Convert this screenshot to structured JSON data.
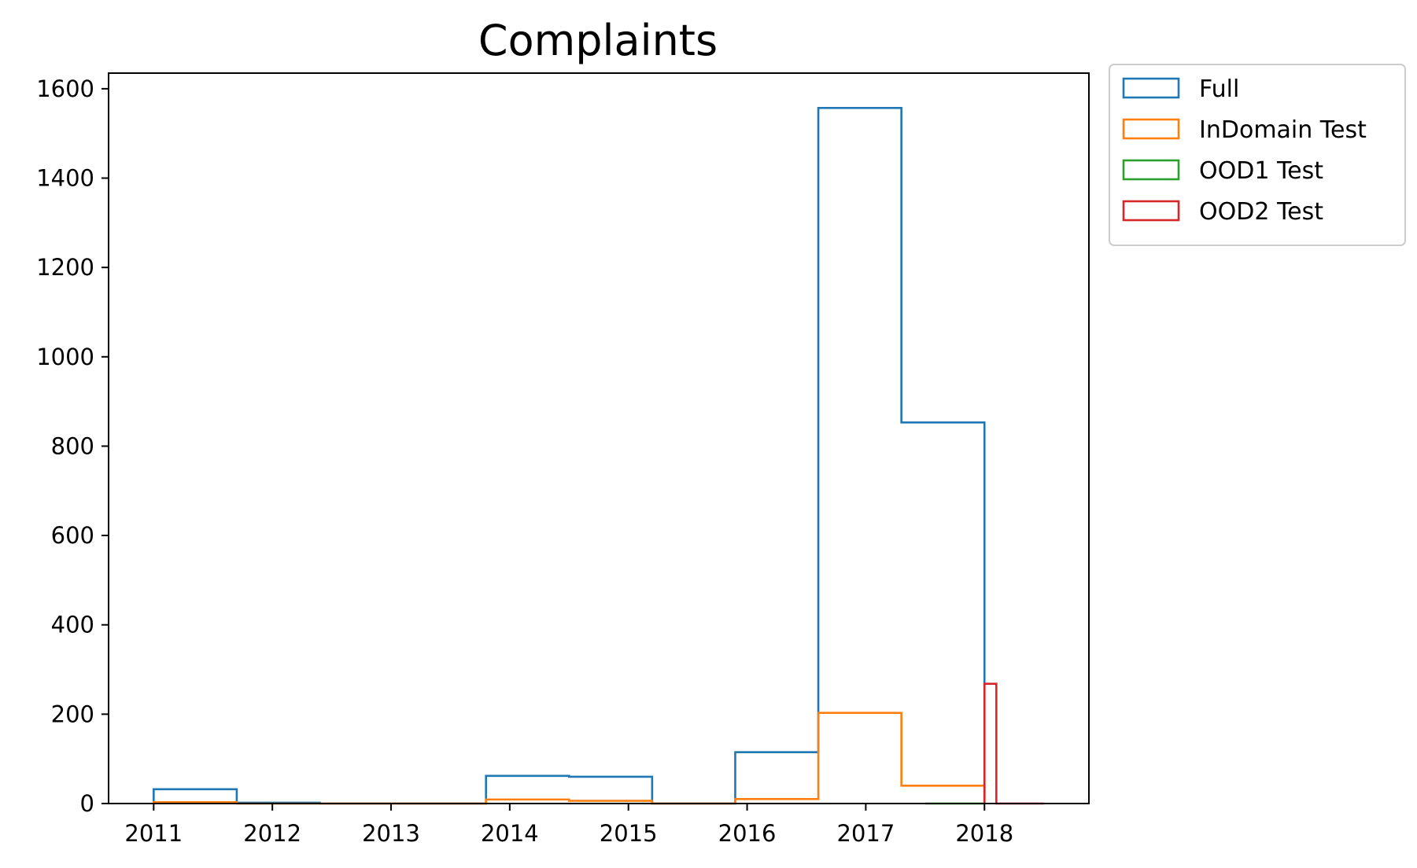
{
  "chart_data": {
    "type": "histogram-step",
    "title": "Complaints",
    "xlabel": "",
    "ylabel": "",
    "xlim": [
      2010.62,
      2018.88
    ],
    "ylim": [
      0,
      1635
    ],
    "x_ticks": [
      2011,
      2012,
      2013,
      2014,
      2015,
      2016,
      2017,
      2018
    ],
    "y_ticks": [
      0,
      200,
      400,
      600,
      800,
      1000,
      1200,
      1400,
      1600
    ],
    "grid": false,
    "legend_placement": "outside-top-right",
    "series": [
      {
        "name": "Full",
        "color": "#1f77b4",
        "bin_edges": [
          2011.0,
          2011.7,
          2012.4,
          2013.1,
          2013.8,
          2014.5,
          2015.2,
          2015.9,
          2016.6,
          2017.3,
          2018.0
        ],
        "counts": [
          32,
          2,
          0,
          0,
          62,
          60,
          0,
          115,
          1557,
          853
        ]
      },
      {
        "name": "InDomain Test",
        "color": "#ff7f0e",
        "bin_edges": [
          2011.0,
          2011.7,
          2012.4,
          2013.1,
          2013.8,
          2014.5,
          2015.2,
          2015.9,
          2016.6,
          2017.3,
          2018.0
        ],
        "counts": [
          3,
          0,
          0,
          0,
          9,
          6,
          0,
          10,
          203,
          40
        ]
      },
      {
        "name": "OOD1 Test",
        "color": "#2ca02c",
        "bin_edges": [
          2017.5,
          2017.6,
          2017.7,
          2017.8,
          2017.9,
          2018.0
        ],
        "counts": [
          0,
          0,
          0,
          0,
          0
        ]
      },
      {
        "name": "OOD2 Test",
        "color": "#d62728",
        "bin_edges": [
          2018.0,
          2018.1,
          2018.2,
          2018.3,
          2018.4,
          2018.5
        ],
        "counts": [
          268,
          0,
          0,
          0,
          0
        ]
      }
    ]
  }
}
